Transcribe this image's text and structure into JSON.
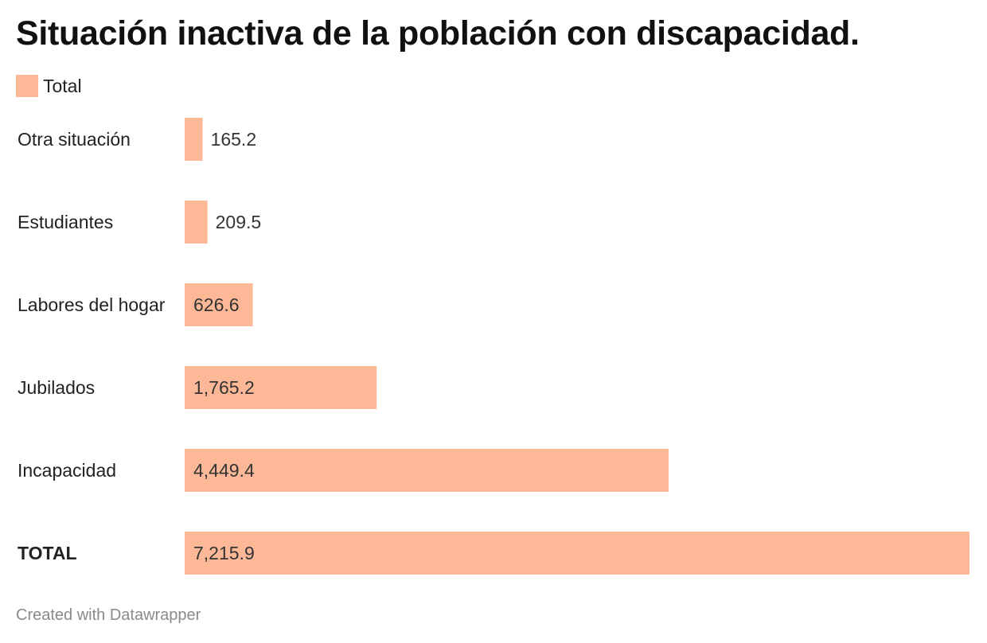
{
  "title": "Situación inactiva de la población con discapacidad.",
  "legend": {
    "label": "Total"
  },
  "footer": "Created with Datawrapper",
  "chart_data": {
    "type": "bar",
    "orientation": "horizontal",
    "title": "Situación inactiva de la población con discapacidad.",
    "categories": [
      "Otra situación",
      "Estudiantes",
      "Labores del hogar",
      "Jubilados",
      "Incapacidad",
      "TOTAL"
    ],
    "series": [
      {
        "name": "Total",
        "values": [
          165.2,
          209.5,
          626.6,
          1765.2,
          4449.4,
          7215.9
        ],
        "value_labels": [
          "165.2",
          "209.5",
          "626.6",
          "1,765.2",
          "4,449.4",
          "7,215.9"
        ]
      }
    ],
    "bold_categories": [
      "TOTAL"
    ],
    "xlim": [
      0,
      7215.9
    ],
    "grid": false,
    "legend_position": "top-left",
    "colors": {
      "bar": "#fdb997"
    }
  }
}
